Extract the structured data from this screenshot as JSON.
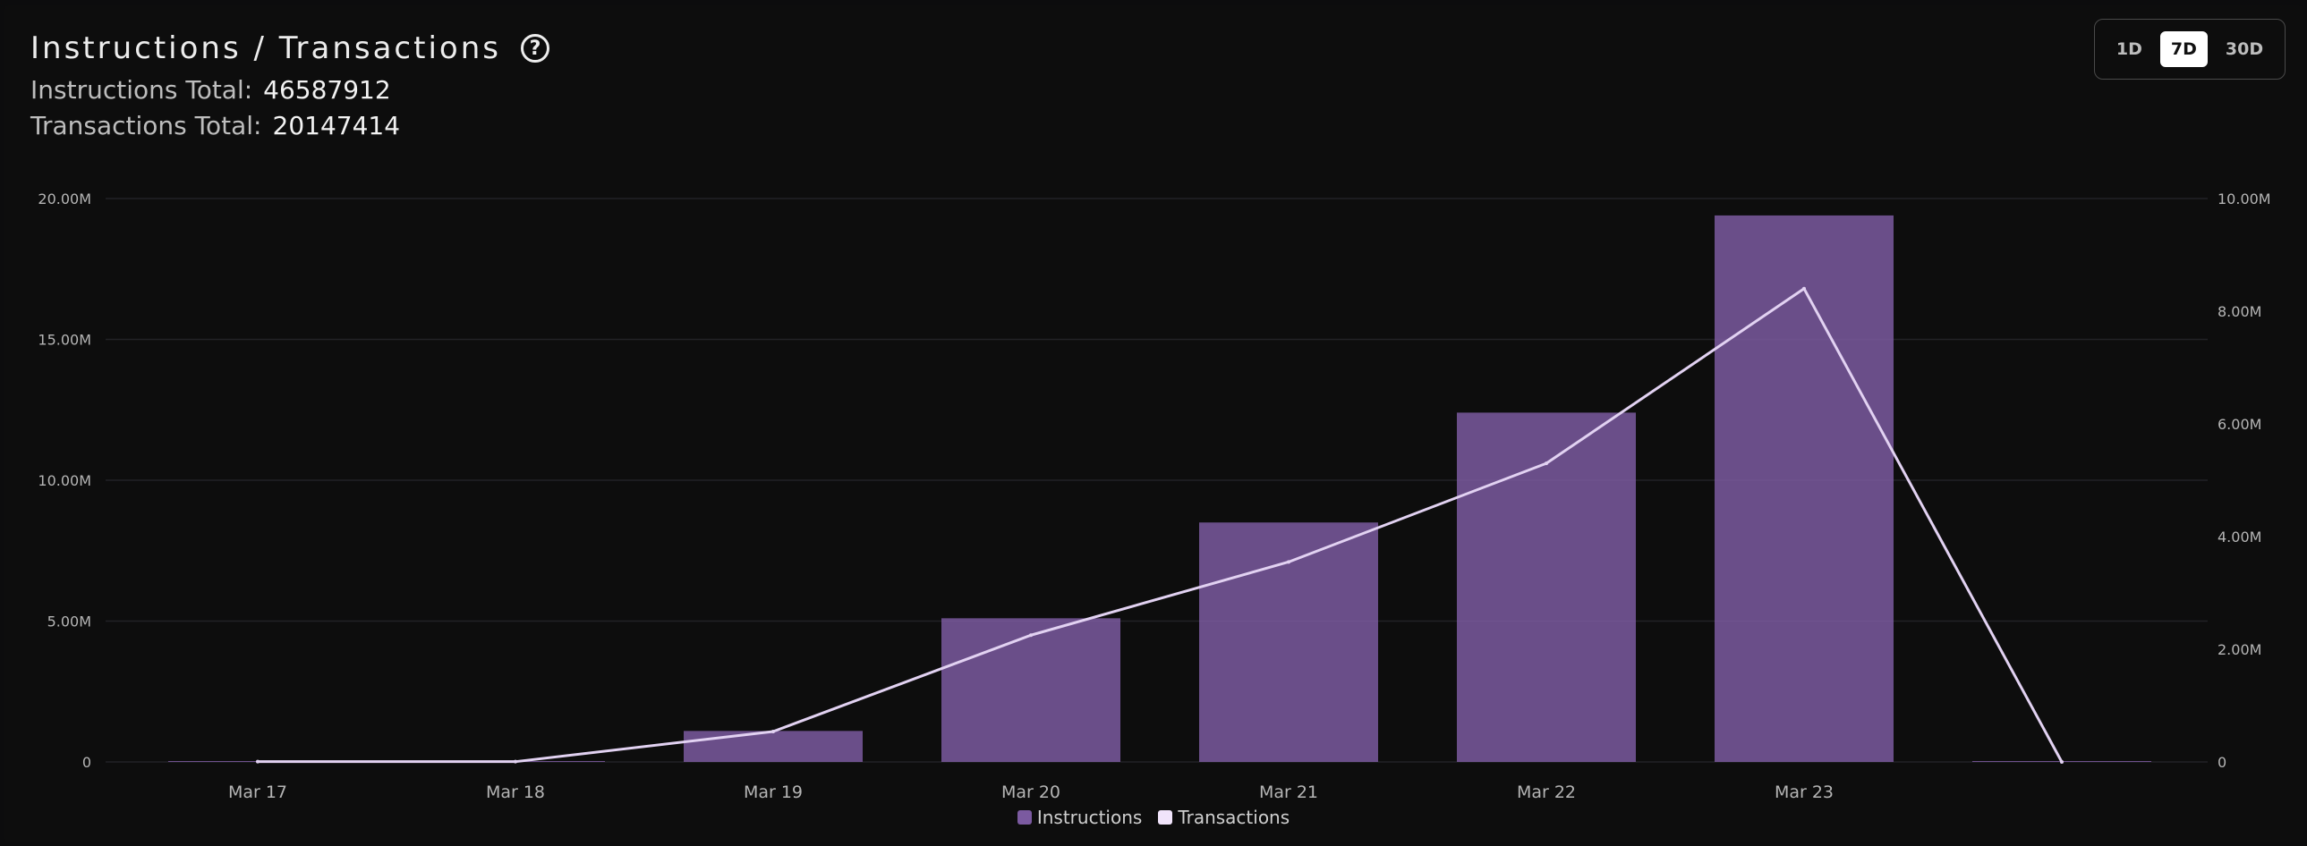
{
  "header": {
    "title": "Instructions / Transactions",
    "instructions_label": "Instructions Total:",
    "instructions_value": "46587912",
    "transactions_label": "Transactions Total:",
    "transactions_value": "20147414"
  },
  "range_selector": {
    "options": [
      "1D",
      "7D",
      "30D"
    ],
    "selected": "7D"
  },
  "colors": {
    "bar": "#7b5aa0",
    "line": "#e2d2f2",
    "grid": "#222226",
    "swatch_line": "#f1e4fb"
  },
  "chart_data": {
    "type": "bar",
    "categories": [
      "Mar 17",
      "Mar 18",
      "Mar 19",
      "Mar 20",
      "Mar 21",
      "Mar 22",
      "Mar 23",
      ""
    ],
    "series": [
      {
        "name": "Instructions",
        "type": "bar",
        "axis": "left",
        "values": [
          10000,
          10000,
          1100000,
          5100000,
          8500000,
          12400000,
          19400000,
          0
        ]
      },
      {
        "name": "Transactions",
        "type": "line",
        "axis": "right",
        "values": [
          5000,
          5000,
          540000,
          2250000,
          3550000,
          5300000,
          8400000,
          0
        ]
      }
    ],
    "y_left": {
      "min": 0,
      "max": 20000000,
      "ticks": [
        0,
        5000000,
        10000000,
        15000000,
        20000000
      ],
      "tick_labels": [
        "0",
        "5.00M",
        "10.00M",
        "15.00M",
        "20.00M"
      ]
    },
    "y_right": {
      "min": 0,
      "max": 10000000,
      "ticks": [
        0,
        2000000,
        4000000,
        6000000,
        8000000,
        10000000
      ],
      "tick_labels": [
        "0",
        "2.00M",
        "4.00M",
        "6.00M",
        "8.00M",
        "10.00M"
      ]
    },
    "grid": true,
    "legend": "bottom-center"
  },
  "legend": {
    "items": [
      {
        "label": "Instructions",
        "color": "#7b5aa0"
      },
      {
        "label": "Transactions",
        "color": "#f1e4fb"
      }
    ]
  }
}
